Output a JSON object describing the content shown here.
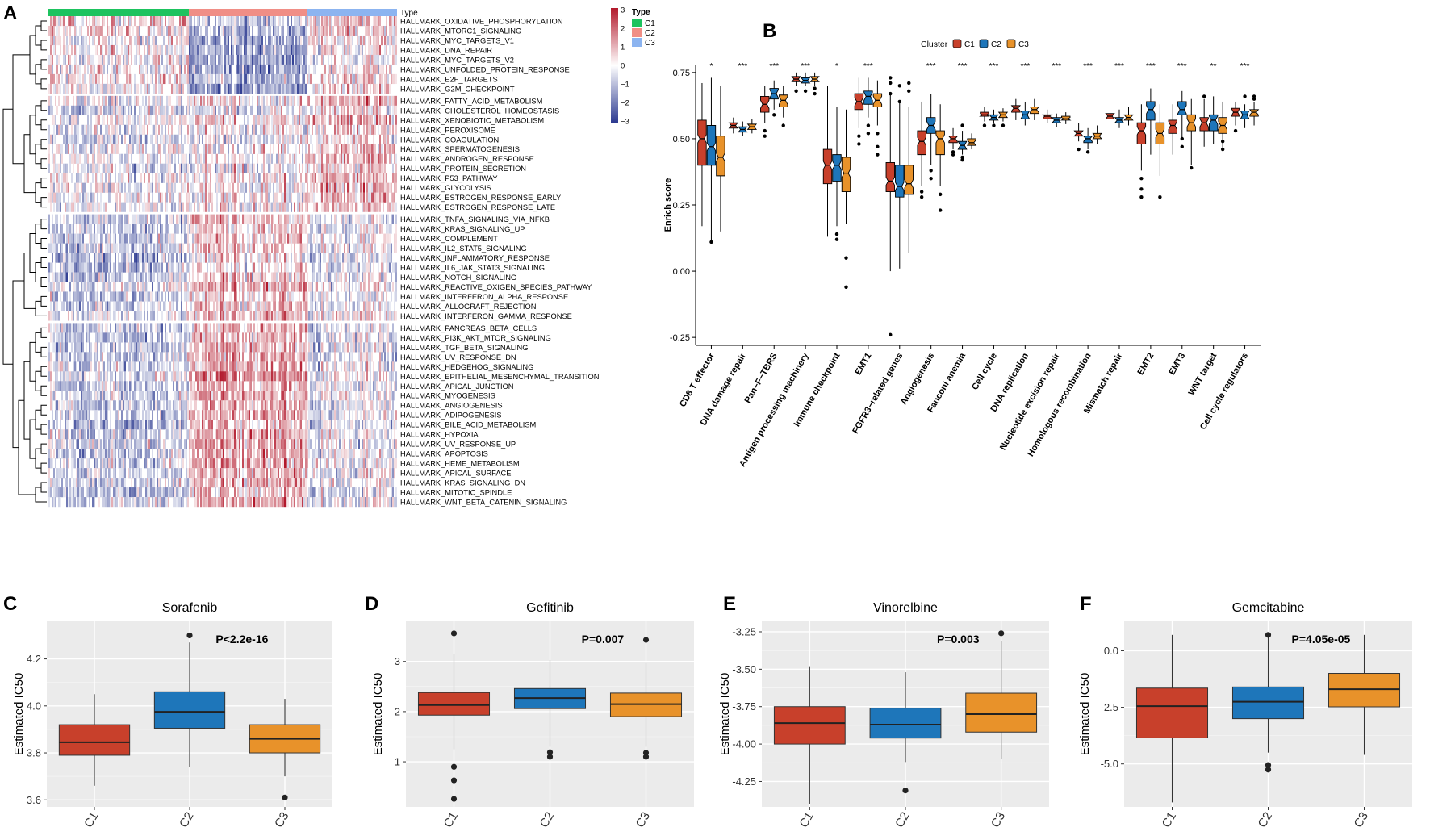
{
  "colors": {
    "C1": "#C8402B",
    "C2": "#1E76BA",
    "C3": "#E8922A",
    "type_C1": "#1DC35F",
    "type_C2": "#F08E86",
    "type_C3": "#8CB4F0",
    "heat_high": "#B2182B",
    "heat_low": "#2B3990",
    "panel_bg": "#EBEBEB"
  },
  "panels": {
    "A": {
      "letter": "A"
    },
    "B": {
      "letter": "B"
    },
    "C": {
      "letter": "C"
    },
    "D": {
      "letter": "D"
    },
    "E": {
      "letter": "E"
    },
    "F": {
      "letter": "F"
    }
  },
  "chart_data": [
    {
      "panel": "A",
      "type": "heatmap",
      "annotation_title": "Type",
      "groups": [
        "C1",
        "C2",
        "C3"
      ],
      "legend_title": "Type",
      "colorbar_ticks": [
        "3",
        "2",
        "1",
        "0",
        "−1",
        "−2",
        "−3"
      ],
      "colorbar_range": [
        -3,
        3
      ],
      "rows": [
        "HALLMARK_OXIDATIVE_PHOSPHORYLATION",
        "HALLMARK_MTORC1_SIGNALING",
        "HALLMARK_MYC_TARGETS_V1",
        "HALLMARK_DNA_REPAIR",
        "HALLMARK_MYC_TARGETS_V2",
        "HALLMARK_UNFOLDED_PROTEIN_RESPONSE",
        "HALLMARK_E2F_TARGETS",
        "HALLMARK_G2M_CHECKPOINT",
        "HALLMARK_FATTY_ACID_METABOLISM",
        "HALLMARK_CHOLESTEROL_HOMEOSTASIS",
        "HALLMARK_XENOBIOTIC_METABOLISM",
        "HALLMARK_PEROXISOME",
        "HALLMARK_COAGULATION",
        "HALLMARK_SPERMATOGENESIS",
        "HALLMARK_ANDROGEN_RESPONSE",
        "HALLMARK_PROTEIN_SECRETION",
        "HALLMARK_P53_PATHWAY",
        "HALLMARK_GLYCOLYSIS",
        "HALLMARK_ESTROGEN_RESPONSE_EARLY",
        "HALLMARK_ESTROGEN_RESPONSE_LATE",
        "HALLMARK_TNFA_SIGNALING_VIA_NFKB",
        "HALLMARK_KRAS_SIGNALING_UP",
        "HALLMARK_COMPLEMENT",
        "HALLMARK_IL2_STAT5_SIGNALING",
        "HALLMARK_INFLAMMATORY_RESPONSE",
        "HALLMARK_IL6_JAK_STAT3_SIGNALING",
        "HALLMARK_NOTCH_SIGNALING",
        "HALLMARK_REACTIVE_OXIGEN_SPECIES_PATHWAY",
        "HALLMARK_INTERFERON_ALPHA_RESPONSE",
        "HALLMARK_ALLOGRAFT_REJECTION",
        "HALLMARK_INTERFERON_GAMMA_RESPONSE",
        "HALLMARK_PANCREAS_BETA_CELLS",
        "HALLMARK_PI3K_AKT_MTOR_SIGNALING",
        "HALLMARK_TGF_BETA_SIGNALING",
        "HALLMARK_UV_RESPONSE_DN",
        "HALLMARK_HEDGEHOG_SIGNALING",
        "HALLMARK_EPITHELIAL_MESENCHYMAL_TRANSITION",
        "HALLMARK_APICAL_JUNCTION",
        "HALLMARK_MYOGENESIS",
        "HALLMARK_ANGIOGENESIS",
        "HALLMARK_ADIPOGENESIS",
        "HALLMARK_BILE_ACID_METABOLISM",
        "HALLMARK_HYPOXIA",
        "HALLMARK_UV_RESPONSE_UP",
        "HALLMARK_APOPTOSIS",
        "HALLMARK_HEME_METABOLISM",
        "HALLMARK_APICAL_SURFACE",
        "HALLMARK_KRAS_SIGNALING_DN",
        "HALLMARK_MITOTIC_SPINDLE",
        "HALLMARK_WNT_BETA_CATENIN_SIGNALING"
      ],
      "row_blocks": [
        8,
        12,
        11,
        19
      ],
      "block_group_bias": [
        [
          0.1,
          -0.9,
          0.2
        ],
        [
          -0.1,
          0.1,
          0.5
        ],
        [
          -0.4,
          0.6,
          -0.1
        ],
        [
          -0.5,
          0.8,
          -0.2
        ]
      ]
    },
    {
      "panel": "B",
      "type": "boxplot",
      "ylabel": "Enrich score",
      "legend_title": "Cluster",
      "series": [
        "C1",
        "C2",
        "C3"
      ],
      "ylim": [
        -0.28,
        0.78
      ],
      "yticks": [
        -0.25,
        0.0,
        0.25,
        0.5,
        0.75
      ],
      "ytick_labels": [
        "-0.25",
        "0.00",
        "0.25",
        "0.50",
        "0.75"
      ],
      "categories": [
        {
          "name": "CD8 T effector",
          "sig": "*",
          "boxes": [
            [
              0.17,
              0.4,
              0.5,
              0.57,
              0.71
            ],
            [
              0.11,
              0.4,
              0.47,
              0.55,
              0.73
            ],
            [
              0.15,
              0.36,
              0.43,
              0.51,
              0.7
            ]
          ],
          "outliers": [
            [],
            [
              0.11
            ],
            []
          ]
        },
        {
          "name": "DNA damage repair",
          "sig": "***",
          "boxes": [
            [
              0.52,
              0.54,
              0.55,
              0.56,
              0.58
            ],
            [
              0.51,
              0.525,
              0.535,
              0.545,
              0.565
            ],
            [
              0.52,
              0.535,
              0.545,
              0.555,
              0.575
            ]
          ],
          "outliers": [
            [],
            [],
            []
          ]
        },
        {
          "name": "Pan−F−TBRS",
          "sig": "***",
          "boxes": [
            [
              0.56,
              0.6,
              0.63,
              0.66,
              0.7
            ],
            [
              0.61,
              0.65,
              0.67,
              0.69,
              0.72
            ],
            [
              0.58,
              0.62,
              0.645,
              0.665,
              0.7
            ]
          ],
          "outliers": [
            [
              0.51,
              0.53
            ],
            [
              0.59
            ],
            [
              0.55
            ]
          ]
        },
        {
          "name": "Antigen processing machinery",
          "sig": "***",
          "boxes": [
            [
              0.7,
              0.715,
              0.725,
              0.735,
              0.75
            ],
            [
              0.7,
              0.71,
              0.72,
              0.73,
              0.75
            ],
            [
              0.7,
              0.715,
              0.725,
              0.735,
              0.75
            ]
          ],
          "outliers": [
            [
              0.68
            ],
            [
              0.68
            ],
            [
              0.67,
              0.69
            ]
          ]
        },
        {
          "name": "Immune checkpoint",
          "sig": "*",
          "boxes": [
            [
              0.13,
              0.33,
              0.4,
              0.46,
              0.7
            ],
            [
              0.17,
              0.34,
              0.4,
              0.44,
              0.62
            ],
            [
              0.18,
              0.3,
              0.37,
              0.43,
              0.61
            ]
          ],
          "outliers": [
            [],
            [
              0.12,
              0.14
            ],
            [
              -0.06,
              0.05
            ]
          ]
        },
        {
          "name": "EMT1",
          "sig": "***",
          "boxes": [
            [
              0.54,
              0.61,
              0.64,
              0.67,
              0.73
            ],
            [
              0.58,
              0.63,
              0.66,
              0.68,
              0.73
            ],
            [
              0.55,
              0.62,
              0.645,
              0.67,
              0.72
            ]
          ],
          "outliers": [
            [
              0.48,
              0.51
            ],
            [
              0.52,
              0.55
            ],
            [
              0.44,
              0.47,
              0.52
            ]
          ]
        },
        {
          "name": "FGFR3−related genes",
          "sig": "",
          "boxes": [
            [
              0.0,
              0.3,
              0.34,
              0.41,
              0.67
            ],
            [
              0.01,
              0.28,
              0.32,
              0.4,
              0.64
            ],
            [
              0.07,
              0.29,
              0.33,
              0.4,
              0.62
            ]
          ],
          "outliers": [
            [
              -0.24,
              0.67,
              0.71,
              0.73
            ],
            [
              0.64,
              0.7
            ],
            [
              0.68,
              0.71
            ]
          ]
        },
        {
          "name": "Angiogenesis",
          "sig": "***",
          "boxes": [
            [
              0.32,
              0.44,
              0.49,
              0.53,
              0.64
            ],
            [
              0.4,
              0.52,
              0.55,
              0.58,
              0.67
            ],
            [
              0.32,
              0.44,
              0.5,
              0.53,
              0.63
            ]
          ],
          "outliers": [
            [
              0.28,
              0.3
            ],
            [
              0.35,
              0.38
            ],
            [
              0.23,
              0.29
            ]
          ]
        },
        {
          "name": "Fanconi anemia",
          "sig": "***",
          "boxes": [
            [
              0.46,
              0.485,
              0.5,
              0.51,
              0.54
            ],
            [
              0.44,
              0.46,
              0.475,
              0.49,
              0.53
            ],
            [
              0.46,
              0.475,
              0.485,
              0.5,
              0.52
            ]
          ],
          "outliers": [
            [
              0.44,
              0.45
            ],
            [
              0.42,
              0.43,
              0.55
            ],
            []
          ]
        },
        {
          "name": "Cell cycle",
          "sig": "***",
          "boxes": [
            [
              0.565,
              0.585,
              0.59,
              0.6,
              0.62
            ],
            [
              0.56,
              0.57,
              0.58,
              0.59,
              0.61
            ],
            [
              0.565,
              0.58,
              0.59,
              0.6,
              0.615
            ]
          ],
          "outliers": [
            [
              0.55
            ],
            [
              0.55
            ],
            [
              0.55
            ]
          ]
        },
        {
          "name": "DNA replication",
          "sig": "***",
          "boxes": [
            [
              0.57,
              0.6,
              0.615,
              0.625,
              0.65
            ],
            [
              0.55,
              0.575,
              0.59,
              0.605,
              0.64
            ],
            [
              0.57,
              0.595,
              0.61,
              0.62,
              0.65
            ]
          ],
          "outliers": [
            [],
            [],
            []
          ]
        },
        {
          "name": "Nucleotide excision repair",
          "sig": "***",
          "boxes": [
            [
              0.56,
              0.575,
              0.585,
              0.59,
              0.61
            ],
            [
              0.545,
              0.56,
              0.57,
              0.58,
              0.595
            ],
            [
              0.555,
              0.57,
              0.575,
              0.585,
              0.6
            ]
          ],
          "outliers": [
            [],
            [],
            []
          ]
        },
        {
          "name": "Homologous recombination",
          "sig": "***",
          "boxes": [
            [
              0.49,
              0.51,
              0.52,
              0.53,
              0.56
            ],
            [
              0.46,
              0.485,
              0.5,
              0.51,
              0.54
            ],
            [
              0.48,
              0.5,
              0.51,
              0.52,
              0.55
            ]
          ],
          "outliers": [
            [
              0.46
            ],
            [
              0.45
            ],
            []
          ]
        },
        {
          "name": "Mismatch repair",
          "sig": "***",
          "boxes": [
            [
              0.55,
              0.575,
              0.585,
              0.595,
              0.62
            ],
            [
              0.54,
              0.56,
              0.57,
              0.58,
              0.61
            ],
            [
              0.55,
              0.57,
              0.58,
              0.59,
              0.62
            ]
          ],
          "outliers": [
            [],
            [],
            []
          ]
        },
        {
          "name": "EMT2",
          "sig": "***",
          "boxes": [
            [
              0.38,
              0.48,
              0.53,
              0.56,
              0.63
            ],
            [
              0.44,
              0.57,
              0.61,
              0.64,
              0.69
            ],
            [
              0.36,
              0.48,
              0.52,
              0.56,
              0.63
            ]
          ],
          "outliers": [
            [
              0.28,
              0.31,
              0.35
            ],
            [],
            [
              0.28
            ]
          ]
        },
        {
          "name": "EMT3",
          "sig": "***",
          "boxes": [
            [
              0.44,
              0.52,
              0.55,
              0.57,
              0.63
            ],
            [
              0.5,
              0.59,
              0.61,
              0.64,
              0.68
            ],
            [
              0.4,
              0.53,
              0.56,
              0.59,
              0.65
            ]
          ],
          "outliers": [
            [],
            [
              0.47,
              0.5
            ],
            [
              0.39
            ]
          ]
        },
        {
          "name": "WNT target",
          "sig": "**",
          "boxes": [
            [
              0.47,
              0.53,
              0.56,
              0.58,
              0.65
            ],
            [
              0.48,
              0.53,
              0.57,
              0.59,
              0.66
            ],
            [
              0.46,
              0.52,
              0.55,
              0.58,
              0.64
            ]
          ],
          "outliers": [
            [
              0.66
            ],
            [],
            [
              0.46,
              0.49
            ]
          ]
        },
        {
          "name": "Cell cycle regulators",
          "sig": "***",
          "boxes": [
            [
              0.55,
              0.585,
              0.6,
              0.615,
              0.64
            ],
            [
              0.54,
              0.575,
              0.59,
              0.605,
              0.63
            ],
            [
              0.55,
              0.585,
              0.6,
              0.61,
              0.64
            ]
          ],
          "outliers": [
            [
              0.53
            ],
            [
              0.66
            ],
            [
              0.65,
              0.66
            ]
          ]
        }
      ]
    },
    {
      "panel": "C",
      "type": "boxplot",
      "title": "Sorafenib",
      "ylabel": "Estimated IC50",
      "categories": [
        "C1",
        "C2",
        "C3"
      ],
      "ylim": [
        3.57,
        4.36
      ],
      "yticks": [
        3.6,
        3.8,
        4.0,
        4.2
      ],
      "ytick_labels": [
        "3.6",
        "3.8",
        "4.0",
        "4.2"
      ],
      "annotation": "P<2.2e-16",
      "boxes": [
        [
          3.66,
          3.79,
          3.845,
          3.92,
          4.05
        ],
        [
          3.74,
          3.905,
          3.975,
          4.06,
          4.27
        ],
        [
          3.7,
          3.8,
          3.86,
          3.92,
          4.03
        ]
      ],
      "outliers": [
        [],
        [
          4.3
        ],
        [
          3.61
        ]
      ]
    },
    {
      "panel": "D",
      "type": "boxplot",
      "title": "Gefitinib",
      "ylabel": "Estimated IC50",
      "categories": [
        "C1",
        "C2",
        "C3"
      ],
      "ylim": [
        0.1,
        3.8
      ],
      "yticks": [
        1,
        2,
        3
      ],
      "ytick_labels": [
        "1",
        "2",
        "3"
      ],
      "annotation": "P=0.007",
      "boxes": [
        [
          1.25,
          1.93,
          2.13,
          2.38,
          3.15
        ],
        [
          1.3,
          2.06,
          2.27,
          2.46,
          3.03
        ],
        [
          1.3,
          1.9,
          2.15,
          2.37,
          2.97
        ]
      ],
      "outliers": [
        [
          0.26,
          0.63,
          0.9,
          3.56
        ],
        [
          1.1,
          1.19
        ],
        [
          1.1,
          1.18,
          3.43
        ]
      ]
    },
    {
      "panel": "E",
      "type": "boxplot",
      "title": "Vinorelbine",
      "ylabel": "Estimated IC50",
      "categories": [
        "C1",
        "C2",
        "C3"
      ],
      "ylim": [
        -4.42,
        -3.18
      ],
      "yticks": [
        -4.25,
        -4.0,
        -3.75,
        -3.5,
        -3.25
      ],
      "ytick_labels": [
        "-4.25",
        "-4.00",
        "-3.75",
        "-3.50",
        "-3.25"
      ],
      "annotation": "P=0.003",
      "boxes": [
        [
          -4.4,
          -4.0,
          -3.86,
          -3.75,
          -3.48
        ],
        [
          -4.12,
          -3.96,
          -3.87,
          -3.76,
          -3.52
        ],
        [
          -4.1,
          -3.92,
          -3.8,
          -3.66,
          -3.31
        ]
      ],
      "outliers": [
        [],
        [
          -4.31
        ],
        [
          -3.26
        ]
      ]
    },
    {
      "panel": "F",
      "type": "boxplot",
      "title": "Gemcitabine",
      "ylabel": "Estimated IC50",
      "categories": [
        "C1",
        "C2",
        "C3"
      ],
      "ylim": [
        -6.9,
        1.3
      ],
      "yticks": [
        -5.0,
        -2.5,
        0.0
      ],
      "ytick_labels": [
        "-5.0",
        "-2.5",
        "0.0"
      ],
      "annotation": "P=4.05e-05",
      "boxes": [
        [
          -6.7,
          -3.85,
          -2.45,
          -1.65,
          0.7
        ],
        [
          -4.5,
          -3.0,
          -2.25,
          -1.6,
          0.65
        ],
        [
          -4.6,
          -2.48,
          -1.7,
          -1.0,
          0.7
        ]
      ],
      "outliers": [
        [],
        [
          -5.05,
          -5.25,
          0.7
        ],
        []
      ]
    }
  ]
}
